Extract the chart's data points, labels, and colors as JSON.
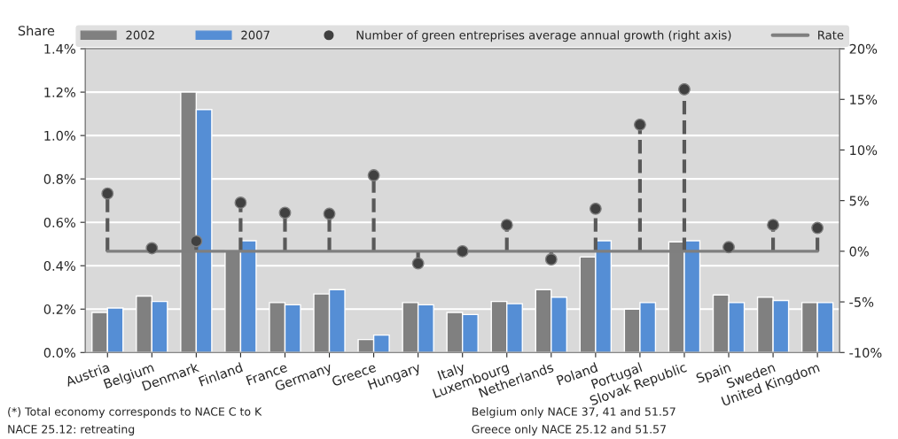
{
  "chart_data": {
    "type": "bar",
    "ylabel": "Share",
    "categories": [
      "Austria",
      "Belgium",
      "Denmark",
      "Finland",
      "France",
      "Germany",
      "Greece",
      "Hungary",
      "Italy",
      "Luxembourg",
      "Netherlands",
      "Poland",
      "Portugal",
      "Slovak Republic",
      "Spain",
      "Sweden",
      "United Kingdom"
    ],
    "series": [
      {
        "name": "2002",
        "color": "#808080",
        "values": [
          0.185,
          0.26,
          1.2,
          0.47,
          0.23,
          0.27,
          0.06,
          0.23,
          0.185,
          0.235,
          0.29,
          0.44,
          0.2,
          0.51,
          0.265,
          0.255,
          0.23
        ]
      },
      {
        "name": "2007",
        "color": "#558ed5",
        "values": [
          0.205,
          0.235,
          1.12,
          0.515,
          0.22,
          0.29,
          0.08,
          0.22,
          0.175,
          0.225,
          0.255,
          0.515,
          0.23,
          0.515,
          0.23,
          0.24,
          0.23
        ]
      },
      {
        "name": "Number of green entreprises average annual growth (right axis)",
        "type": "lollipop",
        "axis": "y2",
        "color": "#404040",
        "marker": "circle",
        "line_style": "dashed",
        "values": [
          5.7,
          0.3,
          1.0,
          4.8,
          3.8,
          3.7,
          7.5,
          -1.2,
          0,
          2.6,
          -0.8,
          4.2,
          12.5,
          16,
          0.4,
          2.6,
          2.3
        ]
      },
      {
        "name": "Rate",
        "type": "line",
        "axis": "y2",
        "color": "#7f7f7f",
        "marker": "none",
        "line_style": "solid",
        "values": [
          0,
          0,
          0,
          0,
          0,
          0,
          0,
          0,
          0,
          0,
          0,
          0,
          0,
          0,
          0,
          0,
          0
        ]
      }
    ],
    "ylim": [
      0,
      1.4
    ],
    "yticks": [
      {
        "value": 0,
        "label": "0.0%"
      },
      {
        "value": 0.2,
        "label": "0.2%"
      },
      {
        "value": 0.4,
        "label": "0.4%"
      },
      {
        "value": 0.6,
        "label": "0.6%"
      },
      {
        "value": 0.8,
        "label": "0.8%"
      },
      {
        "value": 1.0,
        "label": "1.0%"
      },
      {
        "value": 1.2,
        "label": "1.2%"
      },
      {
        "value": 1.4,
        "label": "1.4%"
      }
    ],
    "y2lim": [
      -10,
      20
    ],
    "y2ticks": [
      {
        "value": -10,
        "label": "-10%"
      },
      {
        "value": -5,
        "label": "-5%"
      },
      {
        "value": 0,
        "label": "0%"
      },
      {
        "value": 5,
        "label": "5%"
      },
      {
        "value": 10,
        "label": "10%"
      },
      {
        "value": 15,
        "label": "15%"
      },
      {
        "value": 20,
        "label": "20%"
      }
    ],
    "grid": "y",
    "legend": "top",
    "annotations": [
      "(*) Total economy corresponds to NACE C to K",
      "NACE 25.12: retreating",
      "Belgium only NACE 37, 41 and 51.57",
      "Greece only NACE 25.12 and 51.57"
    ]
  }
}
